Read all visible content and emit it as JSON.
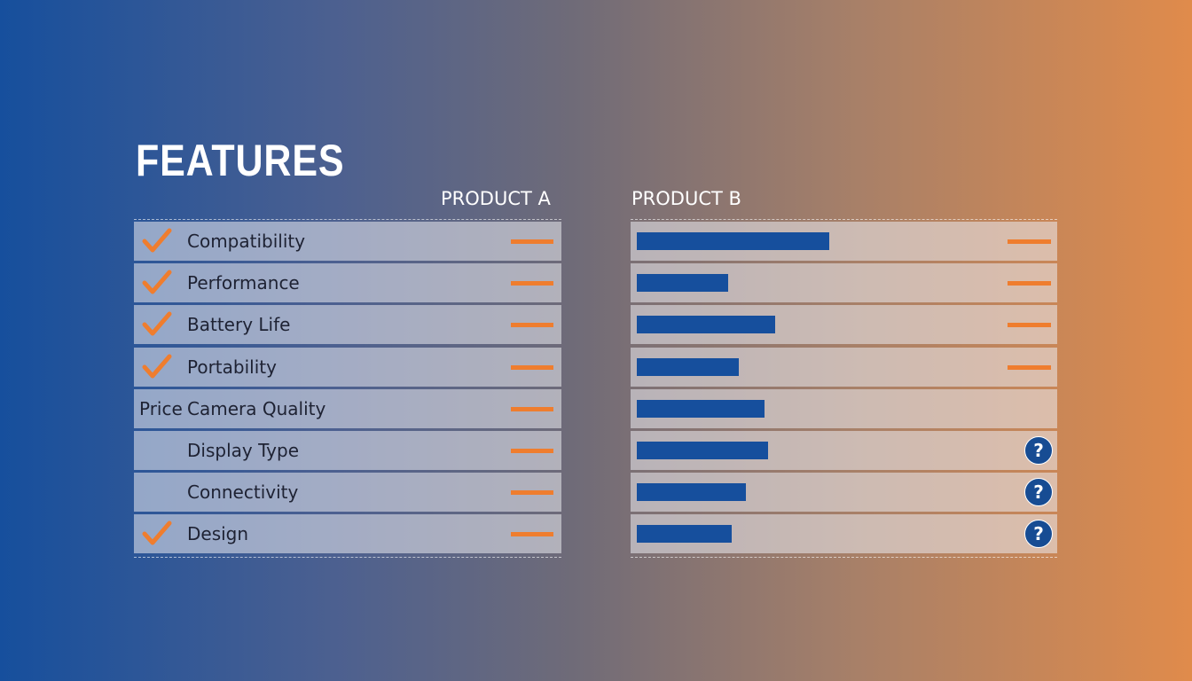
{
  "title": "FEATURES",
  "columns": [
    "PRODUCT A",
    "PRODUCT B"
  ],
  "xlim": [
    0,
    100
  ],
  "rows": [
    {
      "label": "Compatibility",
      "checked": true,
      "product_b": 53,
      "b_mark": "dash"
    },
    {
      "label": "Performance",
      "checked": true,
      "product_b": 25,
      "b_mark": "dash"
    },
    {
      "label": "Battery Life",
      "checked": true,
      "product_b": 38,
      "b_mark": "dash"
    },
    {
      "label": "Portability",
      "checked": true,
      "product_b": 28,
      "b_mark": "dash"
    },
    {
      "label": "Camera Quality",
      "prefix": "Price",
      "checked": false,
      "product_b": 35,
      "b_mark": null
    },
    {
      "label": "Display Type",
      "checked": false,
      "product_b": 36,
      "b_mark": "?"
    },
    {
      "label": "Connectivity",
      "checked": false,
      "product_b": 30,
      "b_mark": "?"
    },
    {
      "label": "Design",
      "checked": true,
      "product_b": 26,
      "b_mark": "?"
    }
  ]
}
